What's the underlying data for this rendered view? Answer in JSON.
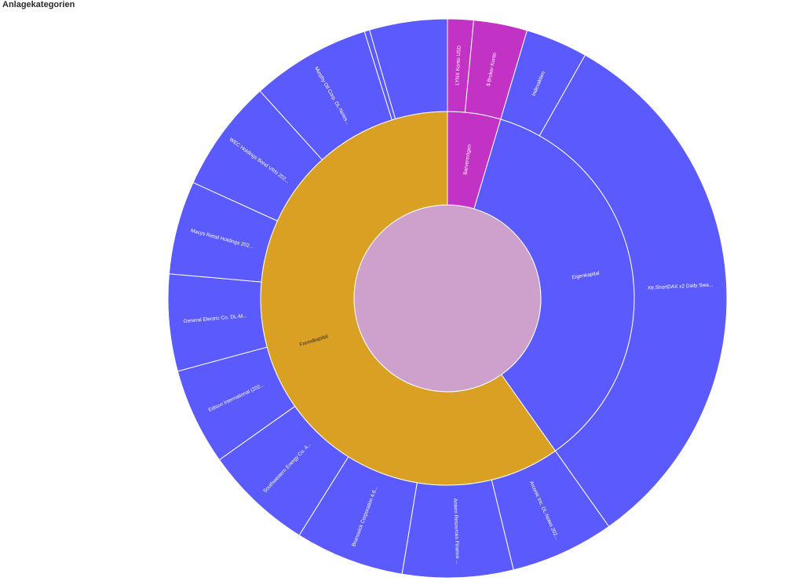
{
  "page": {
    "title": "Anlagekategorien"
  },
  "chart_data": {
    "type": "sunburst",
    "title": "Anlagekategorien",
    "colors": {
      "root": "#cda1cc",
      "Barvermögen": "#c233c5",
      "Eigenkapital": "#5b5afc",
      "Fremdkapital": "#daa023",
      "outer": "#5b5afc"
    },
    "center": {
      "name": "",
      "value": 100
    },
    "rings": [
      {
        "name": "Barvermögen",
        "value": 4.6,
        "children": [
          {
            "name": "LYNX Konto USD",
            "value": 1.5
          },
          {
            "name": "$ Broker Konto",
            "value": 3.1
          }
        ]
      },
      {
        "name": "Eigenkapital",
        "value": 35.6,
        "children": [
          {
            "name": "Indexaktien",
            "value": 3.6
          },
          {
            "name": "Xtr.ShortDAX x2 Daily Swa...",
            "value": 32.0
          }
        ]
      },
      {
        "name": "Fremdkapital",
        "value": 59.8,
        "children": [
          {
            "name": "Arconic Inc. DL-Notes 202...",
            "value": 6.0
          },
          {
            "name": "Antero Resources Finance ...",
            "value": 6.4
          },
          {
            "name": "Brunswick Corporation 4.6...",
            "value": 6.3
          },
          {
            "name": "Southwestern Energy Co. 4...",
            "value": 6.3
          },
          {
            "name": "Edison International (202...",
            "value": 5.6
          },
          {
            "name": "General Electric Co. DL-M...",
            "value": 5.6
          },
          {
            "name": "Macys Retail Holdings 202...",
            "value": 5.4
          },
          {
            "name": "WEC Holdings Bond VRN 202...",
            "value": 6.5
          },
          {
            "name": "Murphy Oil Corp. DL-Notes...",
            "value": 6.9
          },
          {
            "name": "",
            "value": 0.3
          },
          {
            "name": "",
            "value": 4.5
          }
        ]
      }
    ]
  }
}
